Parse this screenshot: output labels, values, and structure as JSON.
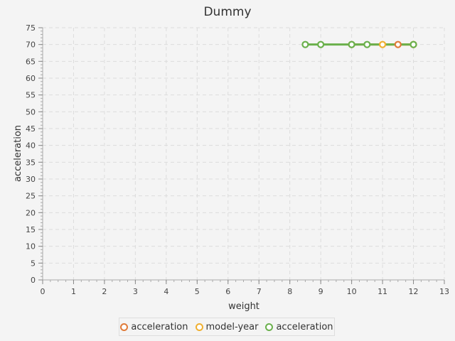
{
  "chart_data": {
    "type": "line",
    "title": "Dummy",
    "xlabel": "weight",
    "ylabel": "acceleration",
    "xlim": [
      0,
      13
    ],
    "ylim": [
      0,
      75
    ],
    "x_ticks": [
      "0",
      "1",
      "2",
      "3",
      "4",
      "5",
      "6",
      "7",
      "8",
      "9",
      "10",
      "11",
      "12",
      "13"
    ],
    "y_ticks": [
      "0",
      "5",
      "10",
      "15",
      "20",
      "25",
      "30",
      "35",
      "40",
      "45",
      "50",
      "55",
      "60",
      "65",
      "70",
      "75"
    ],
    "grid": true,
    "legend_position": "bottom",
    "series": [
      {
        "name": "acceleration",
        "color": "#e07b39",
        "x": [
          10,
          11.5,
          12
        ],
        "y": [
          70,
          70,
          70
        ]
      },
      {
        "name": "model-year",
        "color": "#f0b030",
        "x": [
          11,
          12
        ],
        "y": [
          70,
          70
        ]
      },
      {
        "name": "acceleration",
        "color": "#6ab04c",
        "x": [
          8.5,
          9,
          10,
          10.5,
          12
        ],
        "y": [
          70,
          70,
          70,
          70,
          70
        ]
      }
    ]
  }
}
